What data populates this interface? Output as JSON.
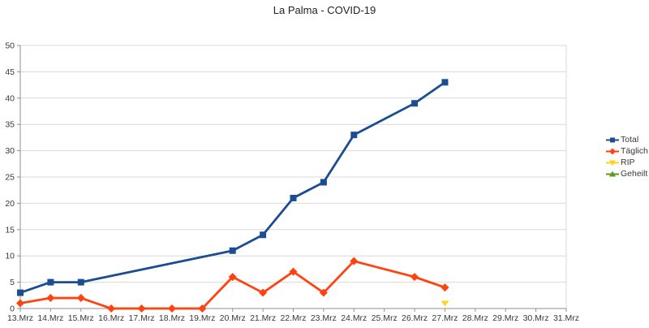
{
  "chart_data": {
    "type": "line",
    "title": "La Palma - COVID-19",
    "categories": [
      "13.Mrz",
      "14.Mrz",
      "15.Mrz",
      "16.Mrz",
      "17.Mrz",
      "18.Mrz",
      "19.Mrz",
      "20.Mrz",
      "21.Mrz",
      "22.Mrz",
      "23.Mrz",
      "24.Mrz",
      "25.Mrz",
      "26.Mrz",
      "27.Mrz",
      "28.Mrz",
      "29.Mrz",
      "30.Mrz",
      "31.Mrz"
    ],
    "ylim": [
      0,
      50
    ],
    "yticks": [
      0,
      5,
      10,
      15,
      20,
      25,
      30,
      35,
      40,
      45,
      50
    ],
    "grid": "horizontal",
    "legend_position": "right",
    "colors": {
      "grid": "#d9d9d9",
      "axis": "#8f8f8f",
      "frame": "#d9d9d9",
      "tick_text": "#383838",
      "title_text": "#222222"
    },
    "series": [
      {
        "name": "Total",
        "color": "#1B4D93",
        "marker": "square",
        "points": [
          [
            "13.Mrz",
            3
          ],
          [
            "14.Mrz",
            5
          ],
          [
            "15.Mrz",
            5
          ],
          [
            "20.Mrz",
            11
          ],
          [
            "21.Mrz",
            14
          ],
          [
            "22.Mrz",
            21
          ],
          [
            "23.Mrz",
            24
          ],
          [
            "24.Mrz",
            33
          ],
          [
            "26.Mrz",
            39
          ],
          [
            "27.Mrz",
            43
          ]
        ]
      },
      {
        "name": "Täglich",
        "color": "#FF420E",
        "marker": "diamond",
        "points": [
          [
            "13.Mrz",
            1
          ],
          [
            "14.Mrz",
            2
          ],
          [
            "15.Mrz",
            2
          ],
          [
            "16.Mrz",
            0
          ],
          [
            "17.Mrz",
            0
          ],
          [
            "18.Mrz",
            0
          ],
          [
            "19.Mrz",
            0
          ],
          [
            "20.Mrz",
            6
          ],
          [
            "21.Mrz",
            3
          ],
          [
            "22.Mrz",
            7
          ],
          [
            "23.Mrz",
            3
          ],
          [
            "24.Mrz",
            9
          ],
          [
            "26.Mrz",
            6
          ],
          [
            "27.Mrz",
            4
          ]
        ]
      },
      {
        "name": "RIP",
        "color": "#FFD320",
        "marker": "triangle-down",
        "points": [
          [
            "27.Mrz",
            1
          ]
        ]
      },
      {
        "name": "Geheilt",
        "color": "#579D1C",
        "marker": "triangle-up",
        "points": []
      }
    ]
  }
}
